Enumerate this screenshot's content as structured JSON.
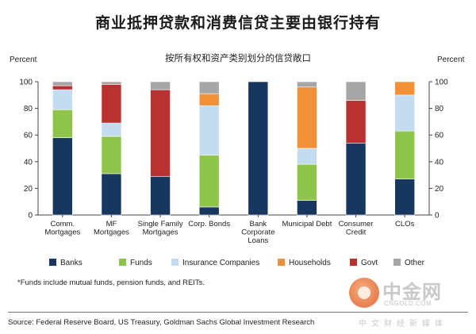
{
  "header": {
    "title": "商业抵押贷款和消费信贷主要由银行持有",
    "subtitle": "按所有权和资产类别划分的信贷敞口"
  },
  "chart_data": {
    "type": "bar",
    "stacked": true,
    "title": "商业抵押贷款和消费信贷主要由银行持有",
    "subtitle": "按所有权和资产类别划分的信贷敞口",
    "ylabel_left": "Percent",
    "ylabel_right": "Percent",
    "ylim": [
      0,
      100
    ],
    "yticks": [
      0,
      20,
      40,
      60,
      80,
      100
    ],
    "grid": false,
    "legend_position": "bottom",
    "categories": [
      "Comm. Mortgages",
      "MF Mortgages",
      "Single Family Mortgages",
      "Corp. Bonds",
      "Bank Corporate Loans",
      "Municipal Debt",
      "Consumer Credit",
      "CLOs"
    ],
    "category_label_lines": [
      [
        "Comm.",
        "Mortgages"
      ],
      [
        "MF",
        "Mortgages"
      ],
      [
        "Single Family",
        "Mortgages"
      ],
      [
        "Corp. Bonds"
      ],
      [
        "Bank",
        "Corporate",
        "Loans"
      ],
      [
        "Municipal Debt"
      ],
      [
        "Consumer",
        "Credit"
      ],
      [
        "CLOs"
      ]
    ],
    "series": [
      {
        "name": "Banks",
        "color": "#17375e",
        "values": [
          58,
          31,
          29,
          6,
          100,
          11,
          54,
          27
        ]
      },
      {
        "name": "Funds",
        "color": "#8fc44b",
        "values": [
          21,
          28,
          0,
          39,
          0,
          27,
          0,
          36
        ]
      },
      {
        "name": "Insurance Companies",
        "color": "#c3dcef",
        "values": [
          15,
          10,
          0,
          37,
          0,
          12,
          0,
          27
        ]
      },
      {
        "name": "Households",
        "color": "#f29038",
        "values": [
          0,
          0,
          0,
          9,
          0,
          46,
          0,
          10
        ]
      },
      {
        "name": "Govt",
        "color": "#b83232",
        "values": [
          3,
          29,
          65,
          0,
          0,
          0,
          32,
          0
        ]
      },
      {
        "name": "Other",
        "color": "#a6a6a6",
        "values": [
          3,
          2,
          6,
          9,
          0,
          4,
          14,
          0
        ]
      }
    ]
  },
  "footnote": "*Funds include mutual funds, pension funds, and REITs.",
  "source": "Source: Federal Reserve Board, US Treasury, Goldman Sachs Global Investment Research",
  "watermark": {
    "name": "中金网",
    "site": "CNGOLD.COM",
    "tagline": "中文财经新媒体"
  }
}
